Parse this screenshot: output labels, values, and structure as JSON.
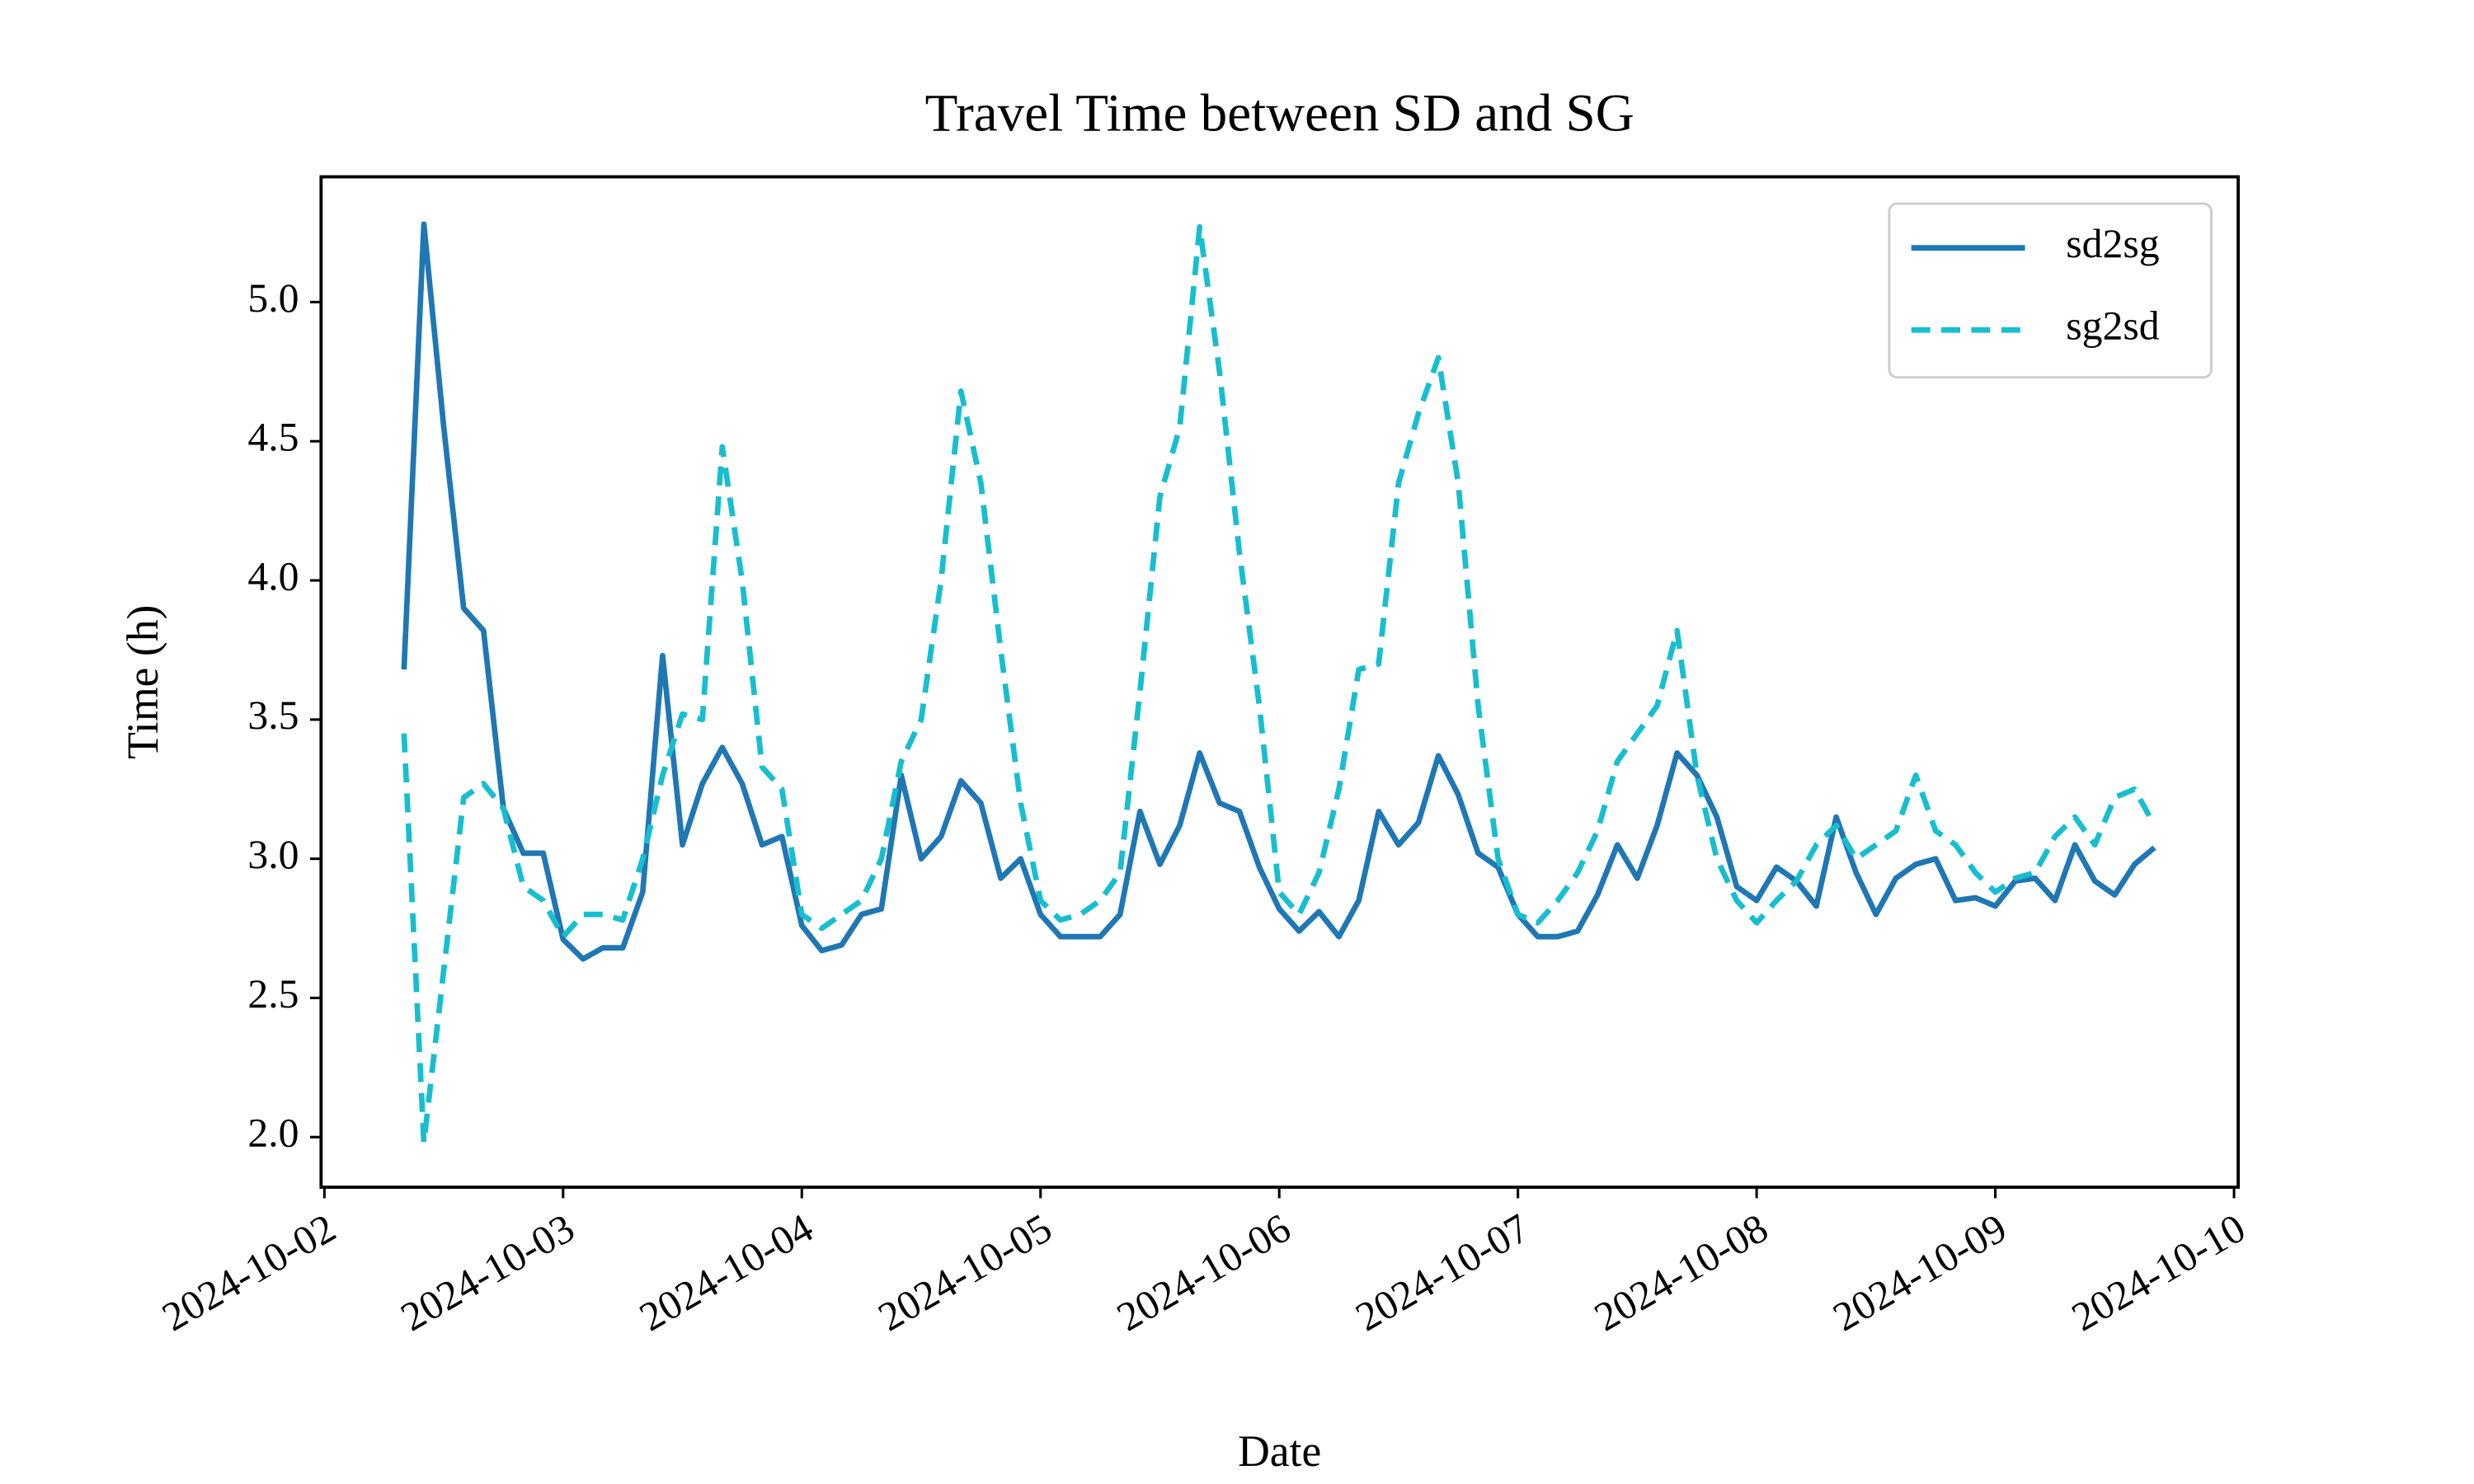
{
  "chart_data": {
    "type": "line",
    "title": "Travel Time between SD and SG",
    "xlabel": "Date",
    "ylabel": "Time (h)",
    "x": [
      "2024-10-02T08:00",
      "2024-10-02T10:00",
      "2024-10-02T12:00",
      "2024-10-02T14:00",
      "2024-10-02T16:00",
      "2024-10-02T18:00",
      "2024-10-02T20:00",
      "2024-10-02T22:00",
      "2024-10-03T00:00",
      "2024-10-03T02:00",
      "2024-10-03T04:00",
      "2024-10-03T06:00",
      "2024-10-03T08:00",
      "2024-10-03T10:00",
      "2024-10-03T12:00",
      "2024-10-03T14:00",
      "2024-10-03T16:00",
      "2024-10-03T18:00",
      "2024-10-03T20:00",
      "2024-10-03T22:00",
      "2024-10-04T00:00",
      "2024-10-04T02:00",
      "2024-10-04T04:00",
      "2024-10-04T06:00",
      "2024-10-04T08:00",
      "2024-10-04T10:00",
      "2024-10-04T12:00",
      "2024-10-04T14:00",
      "2024-10-04T16:00",
      "2024-10-04T18:00",
      "2024-10-04T20:00",
      "2024-10-04T22:00",
      "2024-10-05T00:00",
      "2024-10-05T02:00",
      "2024-10-05T04:00",
      "2024-10-05T06:00",
      "2024-10-05T08:00",
      "2024-10-05T10:00",
      "2024-10-05T12:00",
      "2024-10-05T14:00",
      "2024-10-05T16:00",
      "2024-10-05T18:00",
      "2024-10-05T20:00",
      "2024-10-05T22:00",
      "2024-10-06T00:00",
      "2024-10-06T02:00",
      "2024-10-06T04:00",
      "2024-10-06T06:00",
      "2024-10-06T08:00",
      "2024-10-06T10:00",
      "2024-10-06T12:00",
      "2024-10-06T14:00",
      "2024-10-06T16:00",
      "2024-10-06T18:00",
      "2024-10-06T20:00",
      "2024-10-06T22:00",
      "2024-10-07T00:00",
      "2024-10-07T02:00",
      "2024-10-07T04:00",
      "2024-10-07T06:00",
      "2024-10-07T08:00",
      "2024-10-07T10:00",
      "2024-10-07T12:00",
      "2024-10-07T14:00",
      "2024-10-07T16:00",
      "2024-10-07T18:00",
      "2024-10-07T20:00",
      "2024-10-07T22:00",
      "2024-10-08T00:00",
      "2024-10-08T02:00",
      "2024-10-08T04:00",
      "2024-10-08T06:00",
      "2024-10-08T08:00",
      "2024-10-08T10:00",
      "2024-10-08T12:00",
      "2024-10-08T14:00",
      "2024-10-08T16:00",
      "2024-10-08T18:00",
      "2024-10-08T20:00",
      "2024-10-08T22:00",
      "2024-10-09T00:00",
      "2024-10-09T02:00",
      "2024-10-09T04:00",
      "2024-10-09T06:00",
      "2024-10-09T08:00",
      "2024-10-09T10:00",
      "2024-10-09T12:00",
      "2024-10-09T14:00",
      "2024-10-09T16:00"
    ],
    "series": [
      {
        "name": "sd2sg",
        "color": "#1f77b4",
        "linestyle": "solid",
        "values": [
          3.68,
          5.28,
          4.55,
          3.9,
          3.82,
          3.18,
          3.02,
          3.02,
          2.71,
          2.64,
          2.68,
          2.68,
          2.88,
          3.73,
          3.05,
          3.27,
          3.4,
          3.27,
          3.05,
          3.08,
          2.76,
          2.67,
          2.69,
          2.8,
          2.82,
          3.3,
          3.0,
          3.08,
          3.28,
          3.2,
          2.93,
          3.0,
          2.8,
          2.72,
          2.72,
          2.72,
          2.8,
          3.17,
          2.98,
          3.12,
          3.38,
          3.2,
          3.17,
          2.97,
          2.82,
          2.74,
          2.81,
          2.72,
          2.85,
          3.17,
          3.05,
          3.13,
          3.37,
          3.23,
          3.02,
          2.97,
          2.8,
          2.72,
          2.72,
          2.74,
          2.87,
          3.05,
          2.93,
          3.12,
          3.38,
          3.3,
          3.15,
          2.9,
          2.85,
          2.97,
          2.92,
          2.83,
          3.15,
          2.95,
          2.8,
          2.93,
          2.98,
          3.0,
          2.85,
          2.86,
          2.83,
          2.92,
          2.93,
          2.85,
          3.05,
          2.92,
          2.87,
          2.98,
          3.04
        ]
      },
      {
        "name": "sg2sd",
        "color": "#17becf",
        "linestyle": "dashed",
        "values": [
          3.45,
          1.98,
          2.6,
          3.22,
          3.27,
          3.18,
          2.9,
          2.85,
          2.72,
          2.8,
          2.8,
          2.78,
          3.0,
          3.3,
          3.52,
          3.5,
          4.48,
          4.0,
          3.33,
          3.25,
          2.8,
          2.75,
          2.8,
          2.85,
          3.0,
          3.35,
          3.5,
          4.0,
          4.68,
          4.35,
          3.75,
          3.2,
          2.85,
          2.78,
          2.8,
          2.85,
          2.95,
          3.6,
          4.3,
          4.55,
          5.27,
          4.75,
          4.1,
          3.55,
          2.88,
          2.8,
          2.95,
          3.25,
          3.68,
          3.7,
          4.35,
          4.6,
          4.8,
          4.35,
          3.55,
          3.0,
          2.8,
          2.77,
          2.85,
          2.95,
          3.1,
          3.35,
          3.45,
          3.55,
          3.82,
          3.3,
          3.0,
          2.85,
          2.77,
          2.85,
          2.92,
          3.05,
          3.12,
          3.0,
          3.05,
          3.1,
          3.3,
          3.1,
          3.05,
          2.95,
          2.88,
          2.93,
          2.95,
          3.08,
          3.15,
          3.05,
          3.22,
          3.25,
          3.12
        ]
      }
    ],
    "xlim": [
      "2024-10-01T23:40",
      "2024-10-10T00:25"
    ],
    "xticks": [
      "2024-10-02",
      "2024-10-03",
      "2024-10-04",
      "2024-10-05",
      "2024-10-06",
      "2024-10-07",
      "2024-10-08",
      "2024-10-09",
      "2024-10-10"
    ],
    "ylim": [
      1.82,
      5.45
    ],
    "yticks": [
      {
        "value": 2,
        "label": "2.0"
      },
      {
        "value": 2.5,
        "label": "2.5"
      },
      {
        "value": 3,
        "label": "3.0"
      },
      {
        "value": 3.5,
        "label": "3.5"
      },
      {
        "value": 4,
        "label": "4.0"
      },
      {
        "value": 4.5,
        "label": "4.5"
      },
      {
        "value": 5,
        "label": "5.0"
      }
    ],
    "grid": false,
    "legend": "upper right"
  }
}
